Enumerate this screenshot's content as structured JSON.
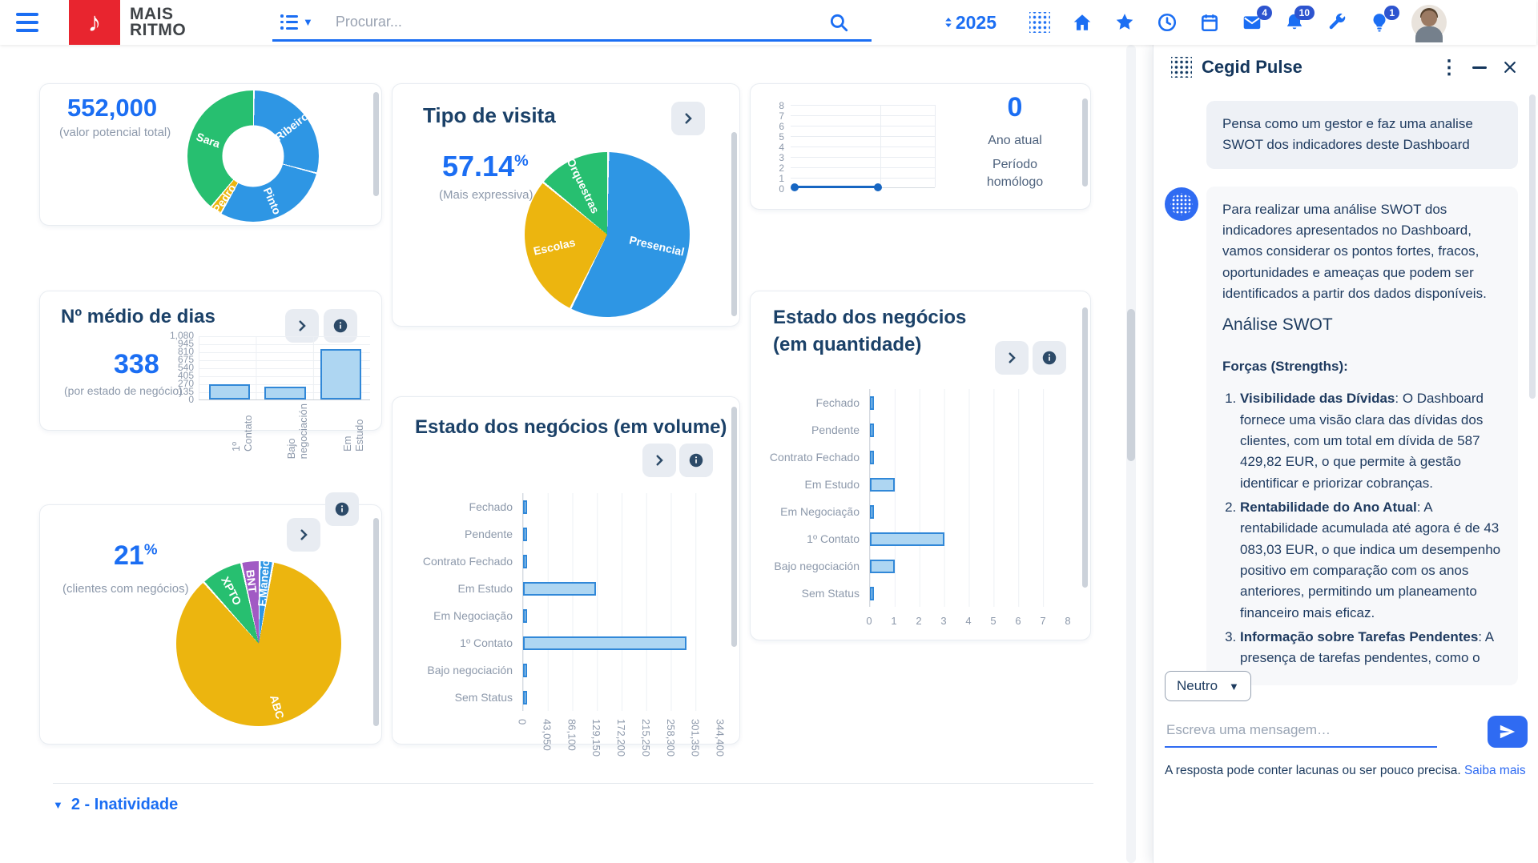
{
  "navbar": {
    "logo_line1": "MAIS",
    "logo_line2": "RITMO",
    "search_placeholder": "Procurar...",
    "year": "2025",
    "icon_names": [
      "apps-grid",
      "home",
      "favorites-star",
      "history-clock",
      "calendar",
      "mail",
      "notifications-bell",
      "tools-wrench",
      "ideas-bulb"
    ],
    "badges": {
      "mail": "4",
      "notifications": "10",
      "ideas": "1"
    },
    "accent_color": "#1b6ef3",
    "logo_color": "#e8252f"
  },
  "chart_data": [
    {
      "id": "potencial",
      "type": "pie",
      "donut": true,
      "value": "552,000",
      "subtitle": "(valor potencial total)",
      "slices": [
        {
          "label": "Ribeiro",
          "value": 29,
          "color": "#2e96e4",
          "lr": 0.74
        },
        {
          "label": "Pinto",
          "value": 29,
          "color": "#2e96e4",
          "lr": 0.74
        },
        {
          "label": "Pedro",
          "value": 2.8,
          "color": "#ecb50f",
          "lr": 0.78
        },
        {
          "label": "Sara",
          "value": 39.2,
          "color": "#27bf70",
          "lr": 0.72
        }
      ]
    },
    {
      "id": "tipo_visita",
      "type": "pie",
      "title": "Tipo de visita",
      "value": "57.14",
      "unit": "%",
      "subtitle": "(Mais expressiva)",
      "slices": [
        {
          "label": "Presencial",
          "value": 57.14,
          "color": "#2e96e4",
          "lr": 0.62
        },
        {
          "label": "Escolas",
          "value": 28.57,
          "color": "#ecb50f",
          "lr": 0.66
        },
        {
          "label": "Orquestras",
          "value": 14.29,
          "color": "#27bf70",
          "lr": 0.66
        }
      ]
    },
    {
      "id": "ano_atual",
      "type": "line",
      "value": "0",
      "label_current": "Ano atual",
      "label_previous": "Período homólogo",
      "yticks": [
        "8",
        "7",
        "6",
        "5",
        "4",
        "3",
        "2",
        "1",
        "0"
      ],
      "series": [
        0,
        0
      ],
      "line_color": "#1766c2"
    },
    {
      "id": "medio_dias",
      "type": "vbar",
      "title": "Nº médio de dias",
      "value": "338",
      "subtitle": "(por estado de negócio)",
      "categories": [
        "1º Contato",
        "Bajo negociación",
        "Em Estudo"
      ],
      "values": [
        260,
        225,
        860
      ],
      "yticks": [
        "1,080",
        "945",
        "810",
        "675",
        "540",
        "405",
        "270",
        "135",
        "0"
      ],
      "ymax": 1080
    },
    {
      "id": "volume",
      "type": "hbar",
      "title": "Estado dos negócios (em volume)",
      "categories": [
        "Fechado",
        "Pendente",
        "Contrato Fechado",
        "Em Estudo",
        "Em Negociação",
        "1º Contato",
        "Bajo negociación",
        "Sem Status"
      ],
      "values": [
        3500,
        3500,
        3500,
        128000,
        3500,
        285000,
        3500,
        3500
      ],
      "xticks": [
        "0",
        "43,050",
        "86,100",
        "129,150",
        "172,200",
        "215,250",
        "258,300",
        "301,350",
        "344,400"
      ],
      "xmax": 344400,
      "rotate_xticks": true
    },
    {
      "id": "quantidade",
      "type": "hbar",
      "title": "Estado dos negócios (em quantidade)",
      "categories": [
        "Fechado",
        "Pendente",
        "Contrato Fechado",
        "Em Estudo",
        "Em Negociação",
        "1º Contato",
        "Bajo negociación",
        "Sem Status"
      ],
      "values": [
        0.05,
        0.05,
        0.05,
        1,
        0.05,
        3,
        1,
        0.05
      ],
      "xticks": [
        "0",
        "1",
        "2",
        "3",
        "4",
        "5",
        "6",
        "7",
        "8"
      ],
      "xmax": 8,
      "rotate_xticks": false
    },
    {
      "id": "clientes",
      "type": "pie",
      "value": "21",
      "unit": "%",
      "subtitle": "(clientes com negócios)",
      "slices": [
        {
          "label": "F.Maneio",
          "value": 2.6,
          "color": "#2e96e4",
          "lr": 0.74
        },
        {
          "label": "ABC",
          "value": 85.6,
          "color": "#ecb50f",
          "lr": 0.8
        },
        {
          "label": "XPTO",
          "value": 8.2,
          "color": "#27bf70",
          "lr": 0.72
        },
        {
          "label": "BNT",
          "value": 3.6,
          "color": "#a15ac4",
          "lr": 0.76
        }
      ]
    }
  ],
  "section_footer": {
    "label": "2 - Inatividade"
  },
  "panel": {
    "title": "Cegid Pulse",
    "user_message": "Pensa como um gestor e faz uma analise SWOT dos indicadores deste Dashboard",
    "bot_intro": "Para realizar uma análise SWOT dos indicadores apresentados no Dashboard, vamos considerar os pontos fortes, fracos, oportunidades e ameaças que podem ser identificados a partir dos dados disponíveis.",
    "bot_heading": "Análise SWOT",
    "bot_subheading": "Forças (Strengths):",
    "list": [
      {
        "bold": "Visibilidade das Dívidas",
        "text": ": O Dashboard fornece uma visão clara das dívidas dos clientes, com um total em dívida de 587 429,82 EUR, o que permite à gestão identificar e priorizar cobranças."
      },
      {
        "bold": "Rentabilidade do Ano Atual",
        "text": ": A rentabilidade acumulada até agora é de 43 083,03 EUR, o que indica um desempenho positivo em comparação com os anos anteriores, permitindo um planeamento financeiro mais eficaz."
      },
      {
        "bold": "Informação sobre Tarefas Pendentes",
        "text": ": A presença de tarefas pendentes, como o"
      }
    ],
    "tone_selector": "Neutro",
    "input_placeholder": "Escreva uma mensagem…",
    "disclaimer": "A resposta pode conter lacunas ou ser pouco precisa. ",
    "disclaimer_link": "Saiba mais"
  }
}
